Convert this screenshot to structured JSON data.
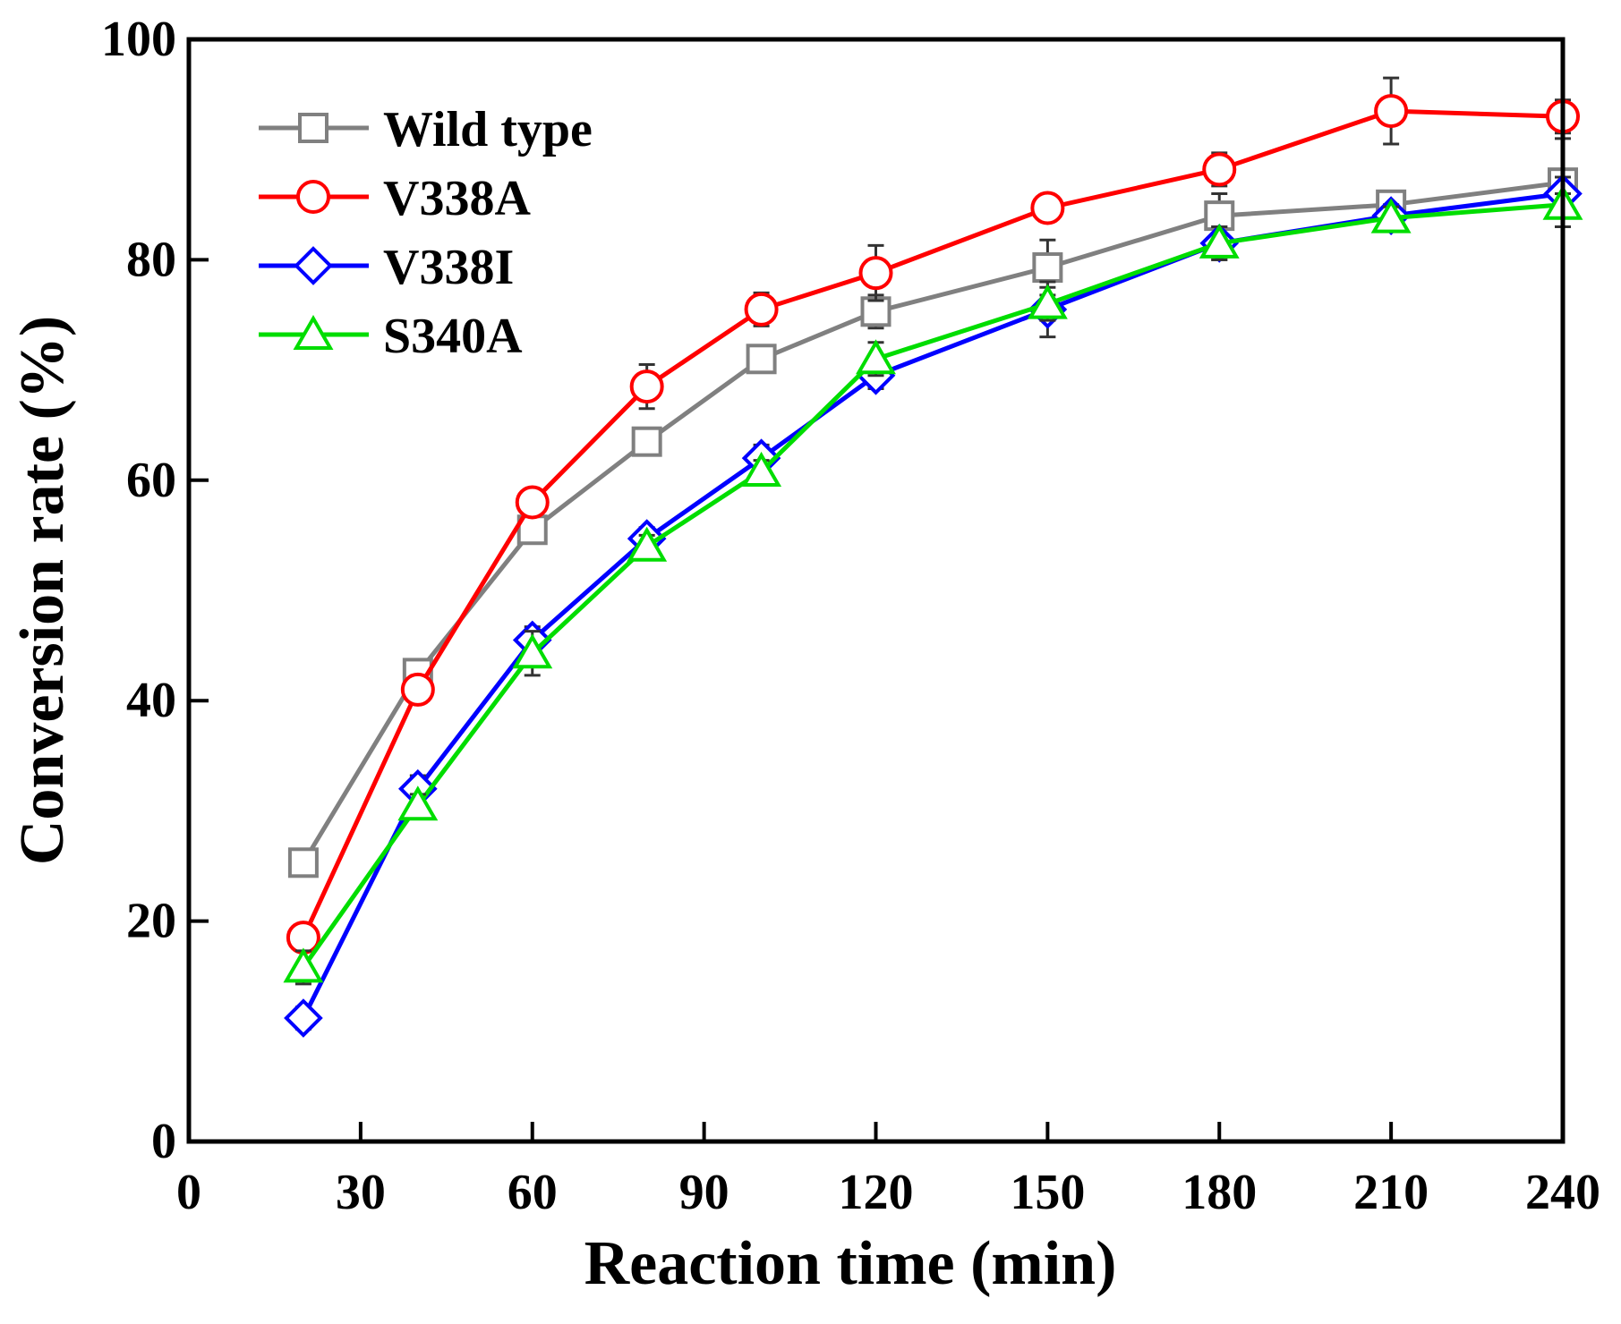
{
  "chart_data": {
    "type": "line",
    "title": "",
    "xlabel": "Reaction time (min)",
    "ylabel": "Conversion rate (%)",
    "xlim": [
      0,
      240
    ],
    "ylim": [
      0,
      100
    ],
    "xticks": [
      "0",
      "30",
      "60",
      "90",
      "120",
      "150",
      "180",
      "210",
      "240"
    ],
    "yticks": [
      "0",
      "20",
      "40",
      "60",
      "80",
      "100"
    ],
    "xtick_values": [
      0,
      30,
      60,
      90,
      120,
      150,
      180,
      210,
      240
    ],
    "ytick_values": [
      0,
      20,
      40,
      60,
      80,
      100
    ],
    "grid": false,
    "legend_position": "top-left",
    "x": [
      20,
      40,
      60,
      80,
      100,
      120,
      150,
      180,
      210,
      240
    ],
    "series": [
      {
        "name": "Wild type",
        "color": "#808080",
        "marker": "square",
        "values": [
          25.3,
          42.5,
          55.5,
          63.5,
          71.0,
          75.3,
          79.3,
          84.0,
          85.0,
          87.0
        ],
        "errors": [
          1.0,
          1.0,
          1.2,
          1.2,
          1.2,
          1.5,
          2.5,
          2.0,
          1.0,
          4.0
        ]
      },
      {
        "name": "V338A",
        "color": "#ff0000",
        "marker": "circle",
        "values": [
          18.5,
          41.0,
          58.0,
          68.5,
          75.5,
          78.8,
          84.7,
          88.2,
          93.5,
          93.0
        ],
        "errors": [
          1.0,
          1.0,
          1.0,
          2.0,
          1.5,
          2.5,
          1.2,
          1.5,
          3.0,
          1.5
        ]
      },
      {
        "name": "V338I",
        "color": "#0000ff",
        "marker": "diamond",
        "values": [
          11.2,
          32.0,
          45.5,
          54.7,
          62.0,
          69.5,
          75.5,
          81.5,
          84.0,
          86.0
        ],
        "errors": [
          1.0,
          1.2,
          1.2,
          1.0,
          1.2,
          1.2,
          2.5,
          1.5,
          1.0,
          1.5
        ]
      },
      {
        "name": "S340A",
        "color": "#00dd00",
        "marker": "triangle",
        "values": [
          15.8,
          30.5,
          44.3,
          54.0,
          60.8,
          71.0,
          76.0,
          81.5,
          83.8,
          85.0
        ],
        "errors": [
          1.5,
          1.0,
          2.0,
          1.0,
          1.0,
          1.5,
          1.5,
          1.5,
          1.0,
          1.0
        ]
      }
    ]
  }
}
